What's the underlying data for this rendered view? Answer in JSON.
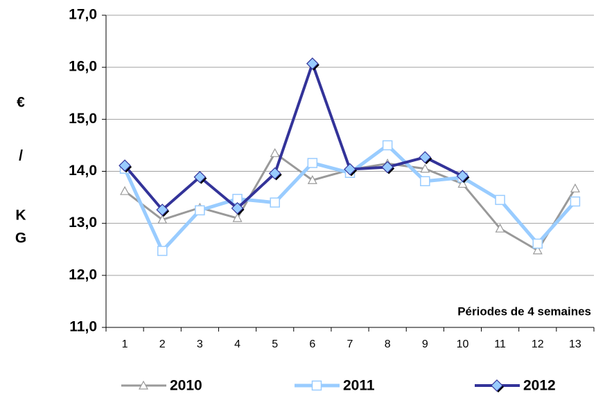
{
  "chart_data": {
    "type": "line",
    "y_label_lines": [
      "€",
      "/",
      "K",
      "G"
    ],
    "annotation": "Périodes de 4 semaines",
    "categories": [
      "1",
      "2",
      "3",
      "4",
      "5",
      "6",
      "7",
      "8",
      "9",
      "10",
      "11",
      "12",
      "13"
    ],
    "series": [
      {
        "name": "2010",
        "color": "#999999",
        "marker": "triangle",
        "values": [
          13.62,
          13.07,
          13.3,
          13.1,
          14.35,
          13.83,
          14.03,
          14.15,
          14.05,
          13.76,
          12.9,
          12.48,
          13.67
        ]
      },
      {
        "name": "2011",
        "color": "#99ccff",
        "marker": "square",
        "values": [
          14.05,
          12.47,
          13.25,
          13.47,
          13.4,
          14.16,
          13.97,
          14.5,
          13.81,
          13.88,
          13.45,
          12.61,
          13.42
        ]
      },
      {
        "name": "2012",
        "color": "#333399",
        "marker": "diamond",
        "values": [
          14.11,
          13.26,
          13.89,
          13.29,
          13.96,
          16.07,
          14.04,
          14.08,
          14.27,
          13.91,
          null,
          null,
          null
        ]
      }
    ],
    "ylim": [
      11,
      17
    ],
    "yticks": [
      {
        "value": 11,
        "label": "11,0"
      },
      {
        "value": 12,
        "label": "12,0"
      },
      {
        "value": 13,
        "label": "13,0"
      },
      {
        "value": 14,
        "label": "14,0"
      },
      {
        "value": 15,
        "label": "15,0"
      },
      {
        "value": 16,
        "label": "16,0"
      },
      {
        "value": 17,
        "label": "17,0"
      }
    ],
    "grid": true,
    "legend": "bottom"
  }
}
